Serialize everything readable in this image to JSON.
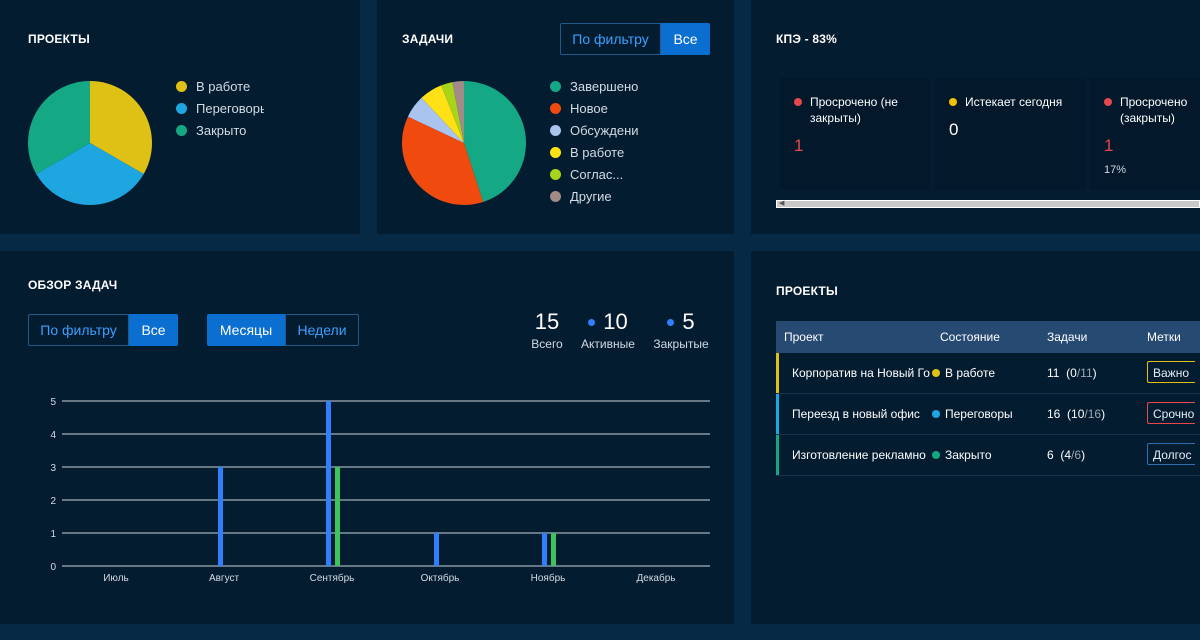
{
  "projects_card": {
    "title": "ПРОЕКТЫ",
    "legend": [
      {
        "label": "В работе",
        "color": "#dfc014"
      },
      {
        "label": "Переговоры",
        "color": "#1ea6e0"
      },
      {
        "label": "Закрыто",
        "color": "#14a984"
      }
    ],
    "pie": [
      {
        "label": "В работе",
        "value": 1,
        "color": "#dfc014"
      },
      {
        "label": "Переговоры",
        "value": 1,
        "color": "#1ea6e0"
      },
      {
        "label": "Закрыто",
        "value": 1,
        "color": "#14a984"
      }
    ]
  },
  "tasks_card": {
    "title": "ЗАДАЧИ",
    "filter_button": "По фильтру",
    "all_button": "Все",
    "legend": [
      {
        "label": "Завершено",
        "color": "#14a984"
      },
      {
        "label": "Новое",
        "color": "#f04a0e"
      },
      {
        "label": "Обсуждени",
        "color": "#a8c4ef"
      },
      {
        "label": "В работе",
        "color": "#ffe115"
      },
      {
        "label": "Соглас...",
        "color": "#a8d51a"
      },
      {
        "label": "Другие",
        "color": "#a38a86"
      }
    ],
    "pie": [
      {
        "label": "Завершено",
        "value": 45,
        "color": "#14a984"
      },
      {
        "label": "Новое",
        "value": 37,
        "color": "#f04a0e"
      },
      {
        "label": "Обсуждени",
        "value": 6,
        "color": "#a8c4ef"
      },
      {
        "label": "В работе",
        "value": 6,
        "color": "#ffe115"
      },
      {
        "label": "Соглас...",
        "value": 3,
        "color": "#a8d51a"
      },
      {
        "label": "Другие",
        "value": 3,
        "color": "#a38a86"
      }
    ]
  },
  "kpi_card": {
    "title": "КПЭ - 83%",
    "items": [
      {
        "label": "Просрочено (не закрыты)",
        "value": "1",
        "dot_color": "#e5484d",
        "value_color": "#e5484d",
        "pct": ""
      },
      {
        "label": "Истекает сегодня",
        "value": "0",
        "dot_color": "#f2c200",
        "value_color": "#ffffff",
        "pct": ""
      },
      {
        "label": "Просрочено (закрыты)",
        "value": "1",
        "dot_color": "#e5484d",
        "value_color": "#e5484d",
        "pct": "17%"
      }
    ]
  },
  "overview_card": {
    "title": "ОБЗОР ЗАДАЧ",
    "filter_button": "По фильтру",
    "all_button": "Все",
    "months_button": "Месяцы",
    "weeks_button": "Недели",
    "stats": [
      {
        "value": "15",
        "label": "Всего",
        "dot": false
      },
      {
        "value": "10",
        "label": "Активные",
        "dot": true
      },
      {
        "value": "5",
        "label": "Закрытые",
        "dot": true
      }
    ]
  },
  "chart_data": {
    "type": "bar",
    "title": "",
    "xlabel": "",
    "ylabel": "",
    "categories": [
      "Июль",
      "Август",
      "Сентябрь",
      "Октябрь",
      "Ноябрь",
      "Декабрь"
    ],
    "series": [
      {
        "values": [
          0,
          3,
          5,
          1,
          1,
          0
        ],
        "color": "#2f7fff"
      },
      {
        "values": [
          0,
          0,
          3,
          0,
          1,
          0
        ],
        "color": "#3cc45f"
      }
    ],
    "yticks": [
      0,
      1,
      2,
      3,
      4,
      5
    ],
    "ylim": [
      0,
      5
    ],
    "grid": true
  },
  "projects_table": {
    "title": "ПРОЕКТЫ",
    "columns": [
      "Проект",
      "Состояние",
      "Задачи",
      "Метки"
    ],
    "rows": [
      {
        "name": "Корпоратив на Новый Го",
        "status": "В работе",
        "status_color": "#dfc014",
        "bar_color": "#dfc014",
        "tasks_active": "11",
        "tasks_open": "0",
        "tasks_total": "/11",
        "tag": "Важно",
        "tag_color": "#dfc014"
      },
      {
        "name": "Переезд в новый офис",
        "status": "Переговоры",
        "status_color": "#1ea6e0",
        "bar_color": "#1ea6e0",
        "tasks_active": "16",
        "tasks_open": "10",
        "tasks_total": "/16",
        "tag": "Срочно",
        "tag_color": "#e5484d"
      },
      {
        "name": "Изготовление рекламно",
        "status": "Закрыто",
        "status_color": "#14a984",
        "bar_color": "#14a984",
        "tasks_active": "6",
        "tasks_open": "4",
        "tasks_total": "/6",
        "tag": "Долгос",
        "tag_color": "#2f6fb0"
      }
    ]
  }
}
